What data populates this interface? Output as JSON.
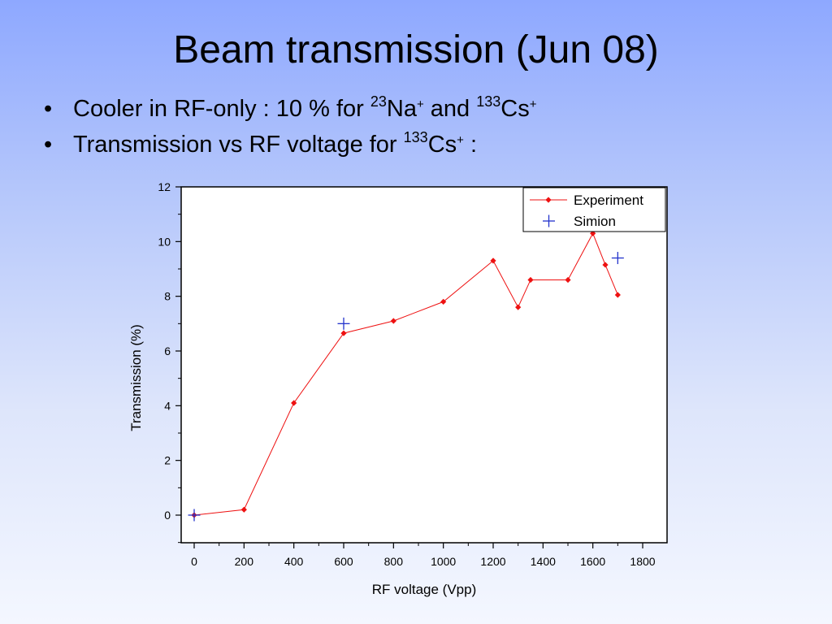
{
  "slide": {
    "title": "Beam transmission (Jun 08)",
    "bullets": [
      {
        "prefix": "Cooler in RF-only : 10 % for ",
        "iso1_mass": "23",
        "iso1_elem": "Na",
        "iso1_charge": "+",
        "middle": " and ",
        "iso2_mass": "133",
        "iso2_elem": "Cs",
        "iso2_charge": "+"
      },
      {
        "prefix": "Transmission vs RF voltage for ",
        "iso_mass": "133",
        "iso_elem": "Cs",
        "iso_charge": "+",
        "suffix": " :"
      }
    ]
  },
  "chart_data": {
    "type": "scatter",
    "xlabel": "RF voltage (Vpp)",
    "ylabel": "Transmission (%)",
    "xlim": [
      -50,
      1900
    ],
    "ylim": [
      -1,
      12
    ],
    "xticks": [
      0,
      200,
      400,
      600,
      800,
      1000,
      1200,
      1400,
      1600,
      1800
    ],
    "yticks": [
      0,
      2,
      4,
      6,
      8,
      10,
      12
    ],
    "grid": false,
    "legend_position": "top-right",
    "series": [
      {
        "name": "Experiment",
        "style": "line-with-diamond-markers",
        "color": "#ee1111",
        "x": [
          0,
          200,
          400,
          600,
          800,
          1000,
          1200,
          1300,
          1350,
          1500,
          1600,
          1650,
          1700
        ],
        "y": [
          0.0,
          0.2,
          4.1,
          6.65,
          7.1,
          7.8,
          9.3,
          7.6,
          8.6,
          8.6,
          10.3,
          9.15,
          8.05
        ]
      },
      {
        "name": "Simion",
        "style": "plus-markers",
        "color": "#2233cc",
        "x": [
          0,
          600,
          1700
        ],
        "y": [
          0.0,
          7.0,
          9.4
        ]
      }
    ]
  }
}
